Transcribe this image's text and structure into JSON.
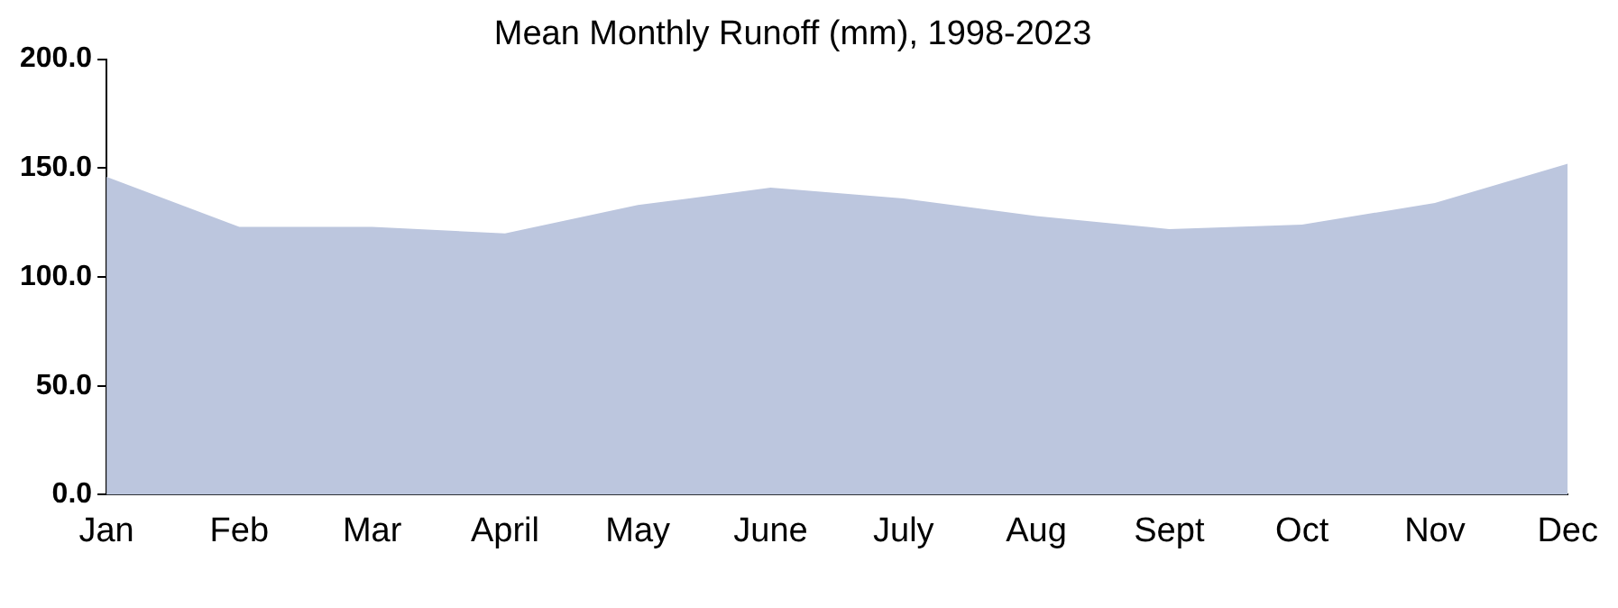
{
  "chart_data": {
    "type": "area",
    "title": "Mean Monthly Runoff (mm), 1998-2023",
    "categories": [
      "Jan",
      "Feb",
      "Mar",
      "April",
      "May",
      "June",
      "July",
      "Aug",
      "Sept",
      "Oct",
      "Nov",
      "Dec"
    ],
    "values": [
      146,
      123,
      123,
      120,
      133,
      141,
      136,
      128,
      122,
      124,
      134,
      152
    ],
    "color": "#bcc6de",
    "ylim": [
      0,
      200
    ],
    "yticks": [
      {
        "value": 0,
        "label": "0.0"
      },
      {
        "value": 50,
        "label": "50.0"
      },
      {
        "value": 100,
        "label": "100.0"
      },
      {
        "value": 150,
        "label": "150.0"
      },
      {
        "value": 200,
        "label": "200.0"
      }
    ],
    "grid": false,
    "legend": false
  }
}
